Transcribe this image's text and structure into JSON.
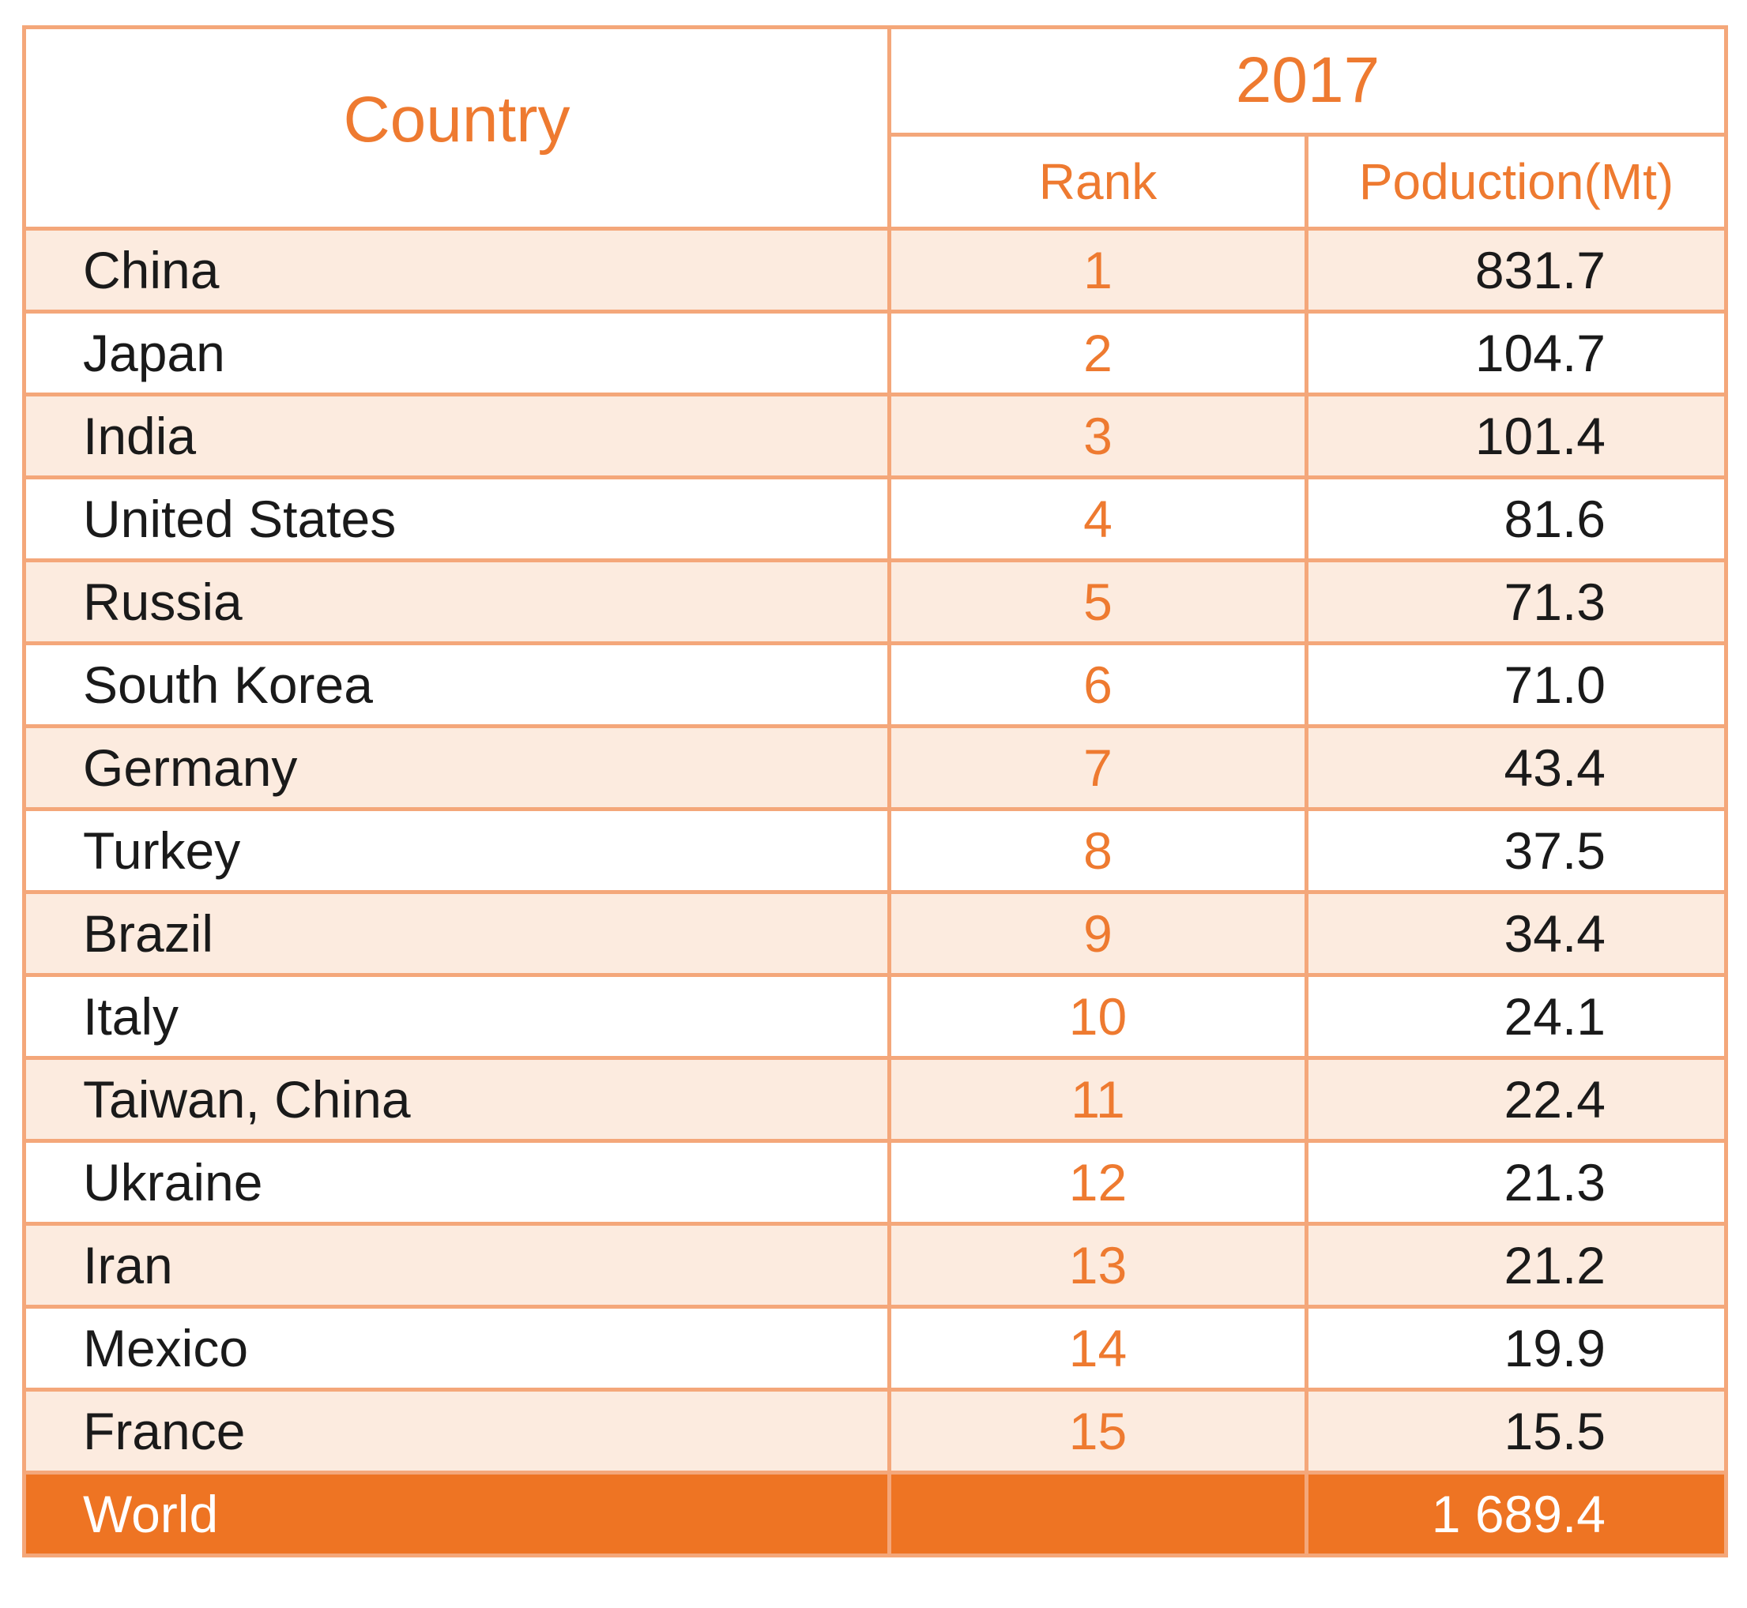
{
  "chart_data": {
    "type": "table",
    "header": {
      "country": "Country",
      "year": "2017",
      "rank": "Rank",
      "production": "Poduction(Mt)"
    },
    "rows": [
      {
        "country": "China",
        "rank": "1",
        "production": "831.7"
      },
      {
        "country": "Japan",
        "rank": "2",
        "production": "104.7"
      },
      {
        "country": "India",
        "rank": "3",
        "production": "101.4"
      },
      {
        "country": "United States",
        "rank": "4",
        "production": "81.6"
      },
      {
        "country": "Russia",
        "rank": "5",
        "production": "71.3"
      },
      {
        "country": "South Korea",
        "rank": "6",
        "production": "71.0"
      },
      {
        "country": "Germany",
        "rank": "7",
        "production": "43.4"
      },
      {
        "country": "Turkey",
        "rank": "8",
        "production": "37.5"
      },
      {
        "country": "Brazil",
        "rank": "9",
        "production": "34.4"
      },
      {
        "country": "Italy",
        "rank": "10",
        "production": "24.1"
      },
      {
        "country": "Taiwan, China",
        "rank": "11",
        "production": "22.4"
      },
      {
        "country": "Ukraine",
        "rank": "12",
        "production": "21.3"
      },
      {
        "country": "Iran",
        "rank": "13",
        "production": "21.2"
      },
      {
        "country": "Mexico",
        "rank": "14",
        "production": "19.9"
      },
      {
        "country": "France",
        "rank": "15",
        "production": "15.5"
      }
    ],
    "total": {
      "country": "World",
      "rank": "",
      "production": "1 689.4"
    }
  },
  "colors": {
    "accent": "#EE7A30",
    "border": "#F4A77A",
    "row_tint": "#FCEBDF",
    "total_bg": "#EE7423"
  }
}
